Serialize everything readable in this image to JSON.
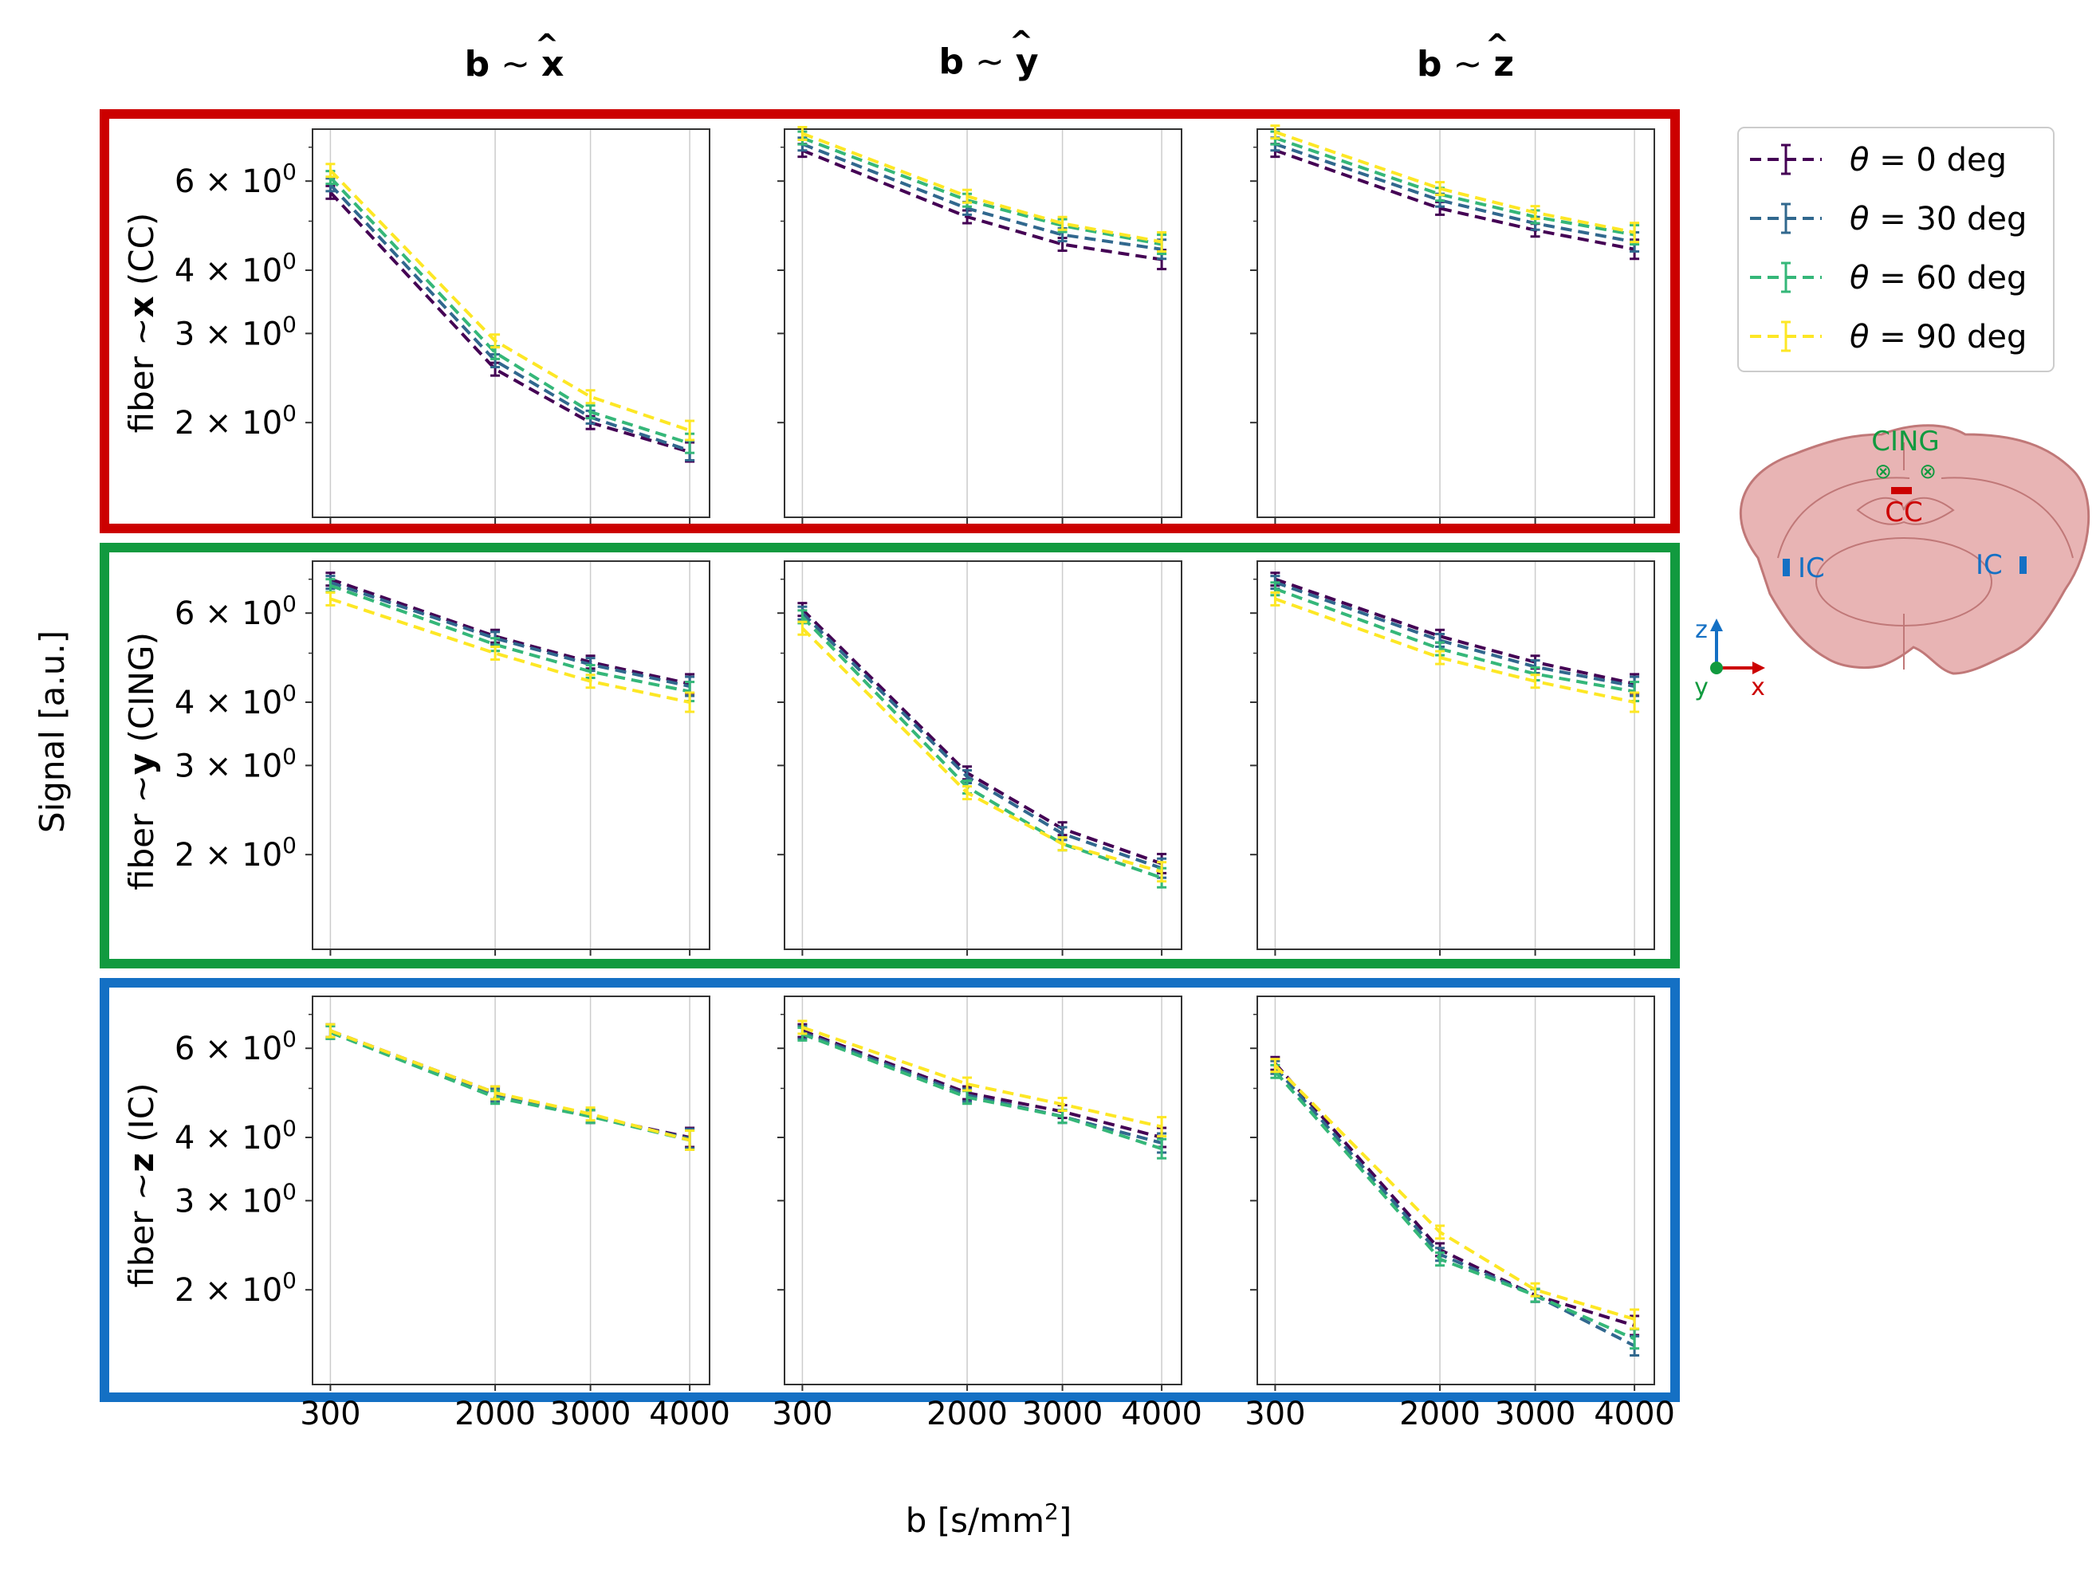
{
  "figure": {
    "ylabel": "Signal [a.u.]",
    "xlabel": "b [s/mm",
    "xlabel_sup": "2",
    "xlabel_end": "]",
    "col_titles": [
      {
        "base": "b",
        "tilde": " ~ ",
        "axis": "x"
      },
      {
        "base": "b",
        "tilde": " ~ ",
        "axis": "y"
      },
      {
        "base": "b",
        "tilde": " ~ ",
        "axis": "z"
      }
    ],
    "row_labels": [
      {
        "prefix": "fiber  ~",
        "axis": "x",
        "region": " (CC)"
      },
      {
        "prefix": "fiber  ~",
        "axis": "y",
        "region": " (CING)"
      },
      {
        "prefix": "fiber  ~",
        "axis": "z",
        "region": " (IC)"
      }
    ],
    "row_colors": [
      "#cc0000",
      "#119a3f",
      "#1470c4"
    ],
    "xtick_labels": [
      "300",
      "2000",
      "3000",
      "4000"
    ],
    "ytick_labels": [
      "6 × 10",
      "4 × 10",
      "3 × 10",
      "2 × 10"
    ],
    "ytick_exp": "0",
    "legend": {
      "theta_symbol": "θ",
      "entries": [
        {
          "label": " = 0 deg",
          "color": "#440154"
        },
        {
          "label": " = 30 deg",
          "color": "#31688e"
        },
        {
          "label": " = 60 deg",
          "color": "#35b779"
        },
        {
          "label": " = 90 deg",
          "color": "#fde725"
        }
      ]
    },
    "brain_inset": {
      "labels": {
        "cing": "CING",
        "cc": "CC",
        "ic_left": "IC",
        "ic_right": "IC"
      },
      "axes": {
        "z": "z",
        "y": "y",
        "x": "x"
      },
      "colors": {
        "tissue": "#e8b4b4",
        "outline": "#c07878",
        "cing": "#119a3f",
        "cc": "#cc0000",
        "ic": "#1470c4",
        "z_axis": "#1470c4",
        "x_axis": "#cc0000",
        "y_dot": "#119a3f"
      }
    }
  },
  "chart_data": {
    "type": "line",
    "scale": "log-y",
    "x": [
      300,
      2000,
      3000,
      4000
    ],
    "ylim": [
      1.3,
      7.6
    ],
    "yticks": [
      6,
      4,
      3,
      2
    ],
    "series_names": [
      "θ = 0 deg",
      "θ = 30 deg",
      "θ = 60 deg",
      "θ = 90 deg"
    ],
    "panels": [
      {
        "row": 0,
        "col": 0,
        "title": "fiber ~ x (CC), b ~ x",
        "series": [
          [
            5.7,
            2.55,
            2.0,
            1.75
          ],
          [
            5.9,
            2.65,
            2.05,
            1.76
          ],
          [
            6.1,
            2.75,
            2.1,
            1.82
          ],
          [
            6.3,
            2.9,
            2.25,
            1.93
          ]
        ]
      },
      {
        "row": 0,
        "col": 1,
        "title": "fiber ~ x (CC), b ~ y",
        "series": [
          [
            6.9,
            5.1,
            4.5,
            4.2
          ],
          [
            7.1,
            5.3,
            4.7,
            4.4
          ],
          [
            7.3,
            5.5,
            4.9,
            4.5
          ],
          [
            7.45,
            5.6,
            4.95,
            4.55
          ]
        ]
      },
      {
        "row": 0,
        "col": 2,
        "title": "fiber ~ x (CC), b ~ z",
        "series": [
          [
            6.9,
            5.3,
            4.8,
            4.4
          ],
          [
            7.1,
            5.5,
            4.95,
            4.55
          ],
          [
            7.3,
            5.65,
            5.1,
            4.7
          ],
          [
            7.5,
            5.8,
            5.2,
            4.75
          ]
        ]
      },
      {
        "row": 1,
        "col": 0,
        "title": "fiber ~ y (CING), b ~ x",
        "series": [
          [
            7.0,
            5.4,
            4.8,
            4.35
          ],
          [
            6.9,
            5.35,
            4.75,
            4.3
          ],
          [
            6.8,
            5.2,
            4.6,
            4.2
          ],
          [
            6.4,
            5.0,
            4.4,
            4.0
          ]
        ]
      },
      {
        "row": 1,
        "col": 1,
        "title": "fiber ~ y (CING), b ~ y",
        "series": [
          [
            6.1,
            2.9,
            2.25,
            1.92
          ],
          [
            6.0,
            2.85,
            2.2,
            1.88
          ],
          [
            5.9,
            2.72,
            2.1,
            1.8
          ],
          [
            5.6,
            2.65,
            2.1,
            1.85
          ]
        ]
      },
      {
        "row": 1,
        "col": 2,
        "title": "fiber ~ y (CING), b ~ z",
        "series": [
          [
            7.0,
            5.4,
            4.8,
            4.35
          ],
          [
            6.9,
            5.3,
            4.7,
            4.3
          ],
          [
            6.7,
            5.1,
            4.55,
            4.2
          ],
          [
            6.4,
            4.9,
            4.4,
            4.0
          ]
        ]
      },
      {
        "row": 2,
        "col": 0,
        "title": "fiber ~ z (IC), b ~ x",
        "series": [
          [
            6.5,
            4.9,
            4.4,
            4.0
          ],
          [
            6.45,
            4.85,
            4.4,
            3.98
          ],
          [
            6.45,
            4.8,
            4.4,
            3.95
          ],
          [
            6.5,
            4.9,
            4.45,
            3.95
          ]
        ]
      },
      {
        "row": 2,
        "col": 1,
        "title": "fiber ~ z (IC), b ~ y",
        "series": [
          [
            6.5,
            4.9,
            4.5,
            4.0
          ],
          [
            6.45,
            4.85,
            4.4,
            3.9
          ],
          [
            6.4,
            4.8,
            4.4,
            3.8
          ],
          [
            6.6,
            5.1,
            4.65,
            4.2
          ]
        ]
      },
      {
        "row": 2,
        "col": 2,
        "title": "fiber ~ z (IC), b ~ z",
        "series": [
          [
            5.6,
            2.4,
            1.95,
            1.7
          ],
          [
            5.5,
            2.35,
            1.95,
            1.55
          ],
          [
            5.4,
            2.3,
            1.95,
            1.6
          ],
          [
            5.55,
            2.6,
            2.0,
            1.75
          ]
        ]
      }
    ]
  }
}
